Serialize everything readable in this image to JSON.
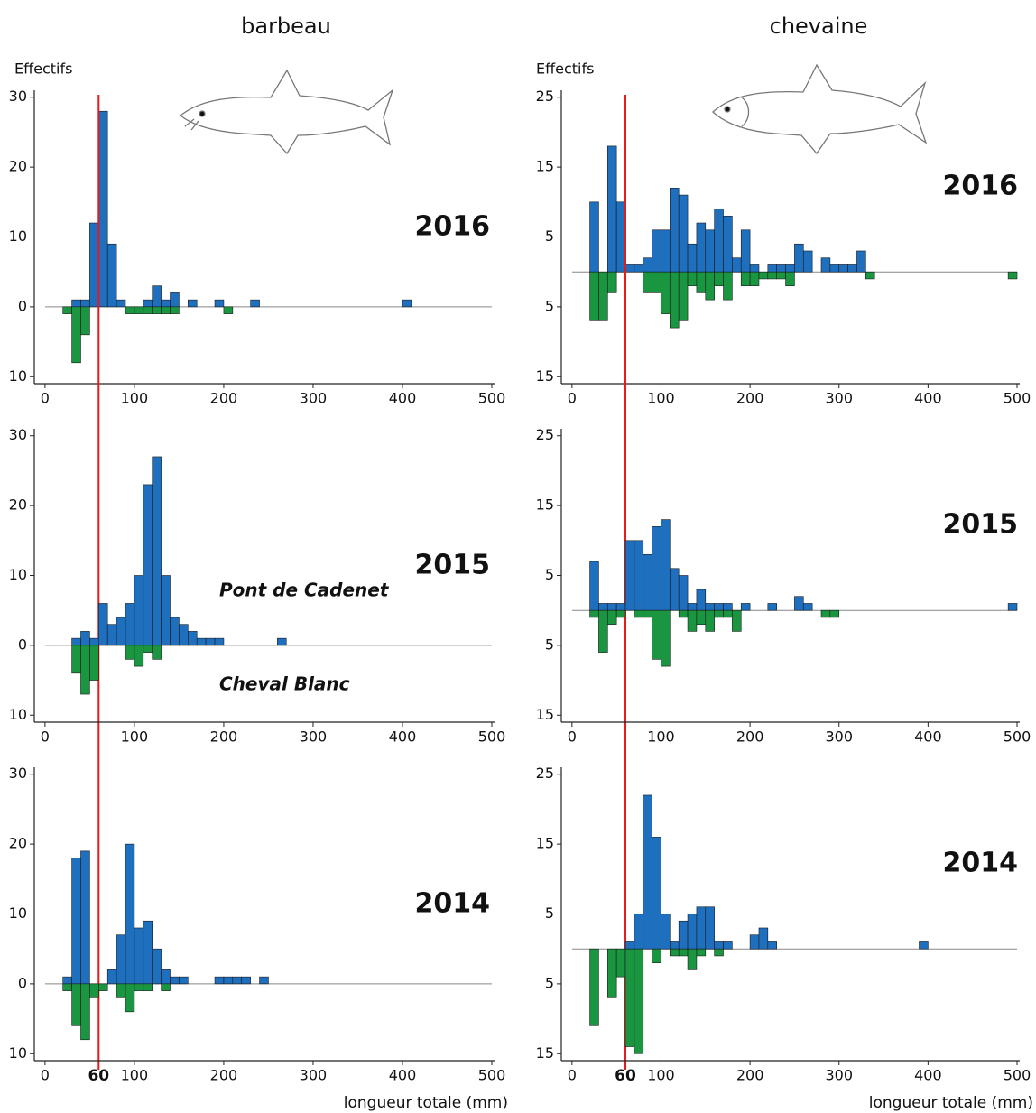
{
  "column_titles": [
    "barbeau",
    "chevaine"
  ],
  "y_label": "Effectifs",
  "x_label": "longueur totale (mm)",
  "reference": {
    "value": 60,
    "label": "60",
    "color": "#e41a1c"
  },
  "legend": [
    {
      "name": "Pont de Cadenet",
      "color": "#1f6fbf"
    },
    {
      "name": "Cheval Blanc",
      "color": "#1a9641"
    }
  ],
  "chart_data": [
    {
      "type": "histogram",
      "title": "2016",
      "bins": [
        20,
        30,
        40,
        50,
        60,
        70,
        80,
        90,
        100,
        110,
        120,
        130,
        140,
        150,
        160,
        170,
        180,
        190,
        200,
        210,
        220,
        230,
        240,
        250,
        260,
        270,
        280,
        290,
        300,
        310,
        320,
        330,
        340,
        350,
        360,
        370,
        380,
        390,
        400,
        410
      ],
      "series": [
        {
          "values": [
            0,
            1,
            1,
            12,
            28,
            9,
            1,
            0,
            0,
            1,
            3,
            1,
            2,
            0,
            1,
            0,
            0,
            1,
            0,
            0,
            0,
            1,
            0,
            0,
            0,
            0,
            0,
            0,
            0,
            0,
            0,
            0,
            0,
            0,
            0,
            0,
            0,
            0,
            1
          ]
        },
        {
          "values": [
            -1,
            -8,
            -4,
            0,
            0,
            0,
            0,
            -1,
            -1,
            -1,
            -1,
            -1,
            -1,
            0,
            0,
            0,
            0,
            0,
            -1,
            0,
            0,
            0,
            0,
            0,
            0,
            0,
            0,
            0,
            0,
            0,
            0,
            0,
            0,
            0,
            0,
            0,
            0,
            0,
            0
          ]
        }
      ],
      "xlim": [
        -12,
        500
      ],
      "xticks": [
        0,
        100,
        200,
        300,
        400,
        500
      ],
      "ylim": [
        -11,
        31
      ],
      "yticks": [
        30,
        20,
        10,
        0,
        {
          "value": -10,
          "label": "10"
        }
      ]
    },
    {
      "type": "histogram",
      "title": "2016",
      "bins": [
        20,
        30,
        40,
        50,
        60,
        70,
        80,
        90,
        100,
        110,
        120,
        130,
        140,
        150,
        160,
        170,
        180,
        190,
        200,
        210,
        220,
        230,
        240,
        250,
        260,
        270,
        280,
        290,
        300,
        310,
        320,
        330,
        340,
        350,
        360,
        370,
        380,
        390,
        400,
        410,
        420,
        430,
        440,
        450,
        460,
        470,
        480,
        490,
        500
      ],
      "series": [
        {
          "values": [
            10,
            0,
            18,
            10,
            1,
            1,
            2,
            6,
            6,
            12,
            11,
            4,
            7,
            6,
            9,
            8,
            2,
            6,
            1,
            0,
            1,
            1,
            1,
            4,
            3,
            0,
            2,
            1,
            1,
            1,
            3,
            0,
            0,
            0,
            0,
            0,
            0,
            0,
            0,
            0,
            0,
            0,
            0,
            0,
            0,
            0,
            0,
            0
          ]
        },
        {
          "values": [
            -7,
            -7,
            -3,
            0,
            0,
            0,
            -3,
            -3,
            -6,
            -8,
            -7,
            -2,
            -3,
            -4,
            -2,
            -4,
            0,
            -2,
            -2,
            -1,
            -1,
            -1,
            -2,
            0,
            0,
            0,
            0,
            0,
            0,
            0,
            0,
            -1,
            0,
            0,
            0,
            0,
            0,
            0,
            0,
            0,
            0,
            0,
            0,
            0,
            0,
            0,
            0,
            -1
          ]
        }
      ],
      "xlim": [
        -12,
        500
      ],
      "xticks": [
        0,
        100,
        200,
        300,
        400,
        500
      ],
      "ylim": [
        -16,
        26
      ],
      "yticks": [
        25,
        15,
        5,
        {
          "value": -5,
          "label": "5"
        },
        {
          "value": -15,
          "label": "15"
        }
      ]
    },
    {
      "type": "histogram",
      "title": "2015",
      "bins": [
        30,
        40,
        50,
        60,
        70,
        80,
        90,
        100,
        110,
        120,
        130,
        140,
        150,
        160,
        170,
        180,
        190,
        200,
        210,
        220,
        230,
        240,
        250,
        260,
        270
      ],
      "series": [
        {
          "values": [
            1,
            2,
            1,
            6,
            3,
            4,
            6,
            10,
            23,
            27,
            10,
            4,
            3,
            2,
            1,
            1,
            1,
            0,
            0,
            0,
            0,
            0,
            0,
            1
          ]
        },
        {
          "values": [
            -4,
            -7,
            -5,
            0,
            0,
            0,
            -2,
            -3,
            -1,
            -2,
            0,
            0,
            0,
            0,
            0,
            0,
            0,
            0,
            0,
            0,
            0,
            0,
            0,
            0
          ]
        }
      ],
      "xlim": [
        -12,
        500
      ],
      "xticks": [
        0,
        100,
        200,
        300,
        400,
        500
      ],
      "ylim": [
        -11,
        31
      ],
      "yticks": [
        30,
        20,
        10,
        0,
        {
          "value": -10,
          "label": "10"
        }
      ]
    },
    {
      "type": "histogram",
      "title": "2015",
      "bins": [
        20,
        30,
        40,
        50,
        60,
        70,
        80,
        90,
        100,
        110,
        120,
        130,
        140,
        150,
        160,
        170,
        180,
        190,
        200,
        210,
        220,
        230,
        240,
        250,
        260,
        270,
        280,
        290,
        300,
        310,
        320,
        330,
        340,
        350,
        360,
        370,
        380,
        390,
        400,
        410,
        420,
        430,
        440,
        450,
        460,
        470,
        480,
        490,
        500
      ],
      "series": [
        {
          "values": [
            7,
            1,
            1,
            1,
            10,
            10,
            8,
            12,
            13,
            6,
            5,
            1,
            3,
            1,
            1,
            1,
            0,
            1,
            0,
            0,
            1,
            0,
            0,
            2,
            1,
            0,
            0,
            0,
            0,
            0,
            0,
            0,
            0,
            0,
            0,
            0,
            0,
            0,
            0,
            0,
            0,
            0,
            0,
            0,
            0,
            0,
            0,
            1
          ]
        },
        {
          "values": [
            -1,
            -6,
            -2,
            -1,
            0,
            -1,
            -1,
            -7,
            -8,
            0,
            -1,
            -3,
            -2,
            -3,
            -1,
            -1,
            -3,
            0,
            0,
            0,
            0,
            0,
            0,
            0,
            0,
            0,
            -1,
            -1,
            0,
            0,
            0,
            0,
            0,
            0,
            0,
            0,
            0,
            0,
            0,
            0,
            0,
            0,
            0,
            0,
            0,
            0,
            0,
            0
          ]
        }
      ],
      "xlim": [
        -12,
        500
      ],
      "xticks": [
        0,
        100,
        200,
        300,
        400,
        500
      ],
      "ylim": [
        -16,
        26
      ],
      "yticks": [
        25,
        15,
        5,
        {
          "value": -5,
          "label": "5"
        },
        {
          "value": -15,
          "label": "15"
        }
      ]
    },
    {
      "type": "histogram",
      "title": "2014",
      "bins": [
        20,
        30,
        40,
        50,
        60,
        70,
        80,
        90,
        100,
        110,
        120,
        130,
        140,
        150,
        160,
        170,
        180,
        190,
        200,
        210,
        220,
        230,
        240,
        250
      ],
      "series": [
        {
          "values": [
            1,
            18,
            19,
            0,
            0,
            2,
            7,
            20,
            8,
            9,
            5,
            2,
            1,
            1,
            0,
            0,
            0,
            1,
            1,
            1,
            1,
            0,
            1
          ]
        },
        {
          "values": [
            -1,
            -6,
            -8,
            -2,
            -1,
            0,
            -2,
            -4,
            -1,
            -1,
            0,
            -1,
            0,
            0,
            0,
            0,
            0,
            0,
            0,
            0,
            0,
            0,
            0
          ]
        }
      ],
      "xlim": [
        -12,
        500
      ],
      "xticks": [
        0,
        100,
        200,
        300,
        400,
        500
      ],
      "ylim": [
        -11,
        31
      ],
      "yticks": [
        30,
        20,
        10,
        0,
        {
          "value": -10,
          "label": "10"
        }
      ]
    },
    {
      "type": "histogram",
      "title": "2014",
      "bins": [
        20,
        30,
        40,
        50,
        60,
        70,
        80,
        90,
        100,
        110,
        120,
        130,
        140,
        150,
        160,
        170,
        180,
        190,
        200,
        210,
        220,
        230,
        240,
        250,
        260,
        270,
        280,
        290,
        300,
        310,
        320,
        330,
        340,
        350,
        360,
        370,
        380,
        390,
        400
      ],
      "series": [
        {
          "values": [
            0,
            0,
            0,
            0,
            1,
            5,
            22,
            16,
            5,
            1,
            4,
            5,
            6,
            6,
            1,
            1,
            0,
            0,
            2,
            3,
            1,
            0,
            0,
            0,
            0,
            0,
            0,
            0,
            0,
            0,
            0,
            0,
            0,
            0,
            0,
            0,
            0,
            1
          ]
        },
        {
          "values": [
            -11,
            0,
            -7,
            -4,
            -14,
            -15,
            0,
            -2,
            0,
            -1,
            -1,
            -3,
            -1,
            0,
            -1,
            0,
            0,
            0,
            0,
            0,
            0,
            0,
            0,
            0,
            0,
            0,
            0,
            0,
            0,
            0,
            0,
            0,
            0,
            0,
            0,
            0,
            0,
            0
          ]
        }
      ],
      "xlim": [
        -12,
        500
      ],
      "xticks": [
        0,
        100,
        200,
        300,
        400,
        500
      ],
      "ylim": [
        -16,
        26
      ],
      "yticks": [
        25,
        15,
        5,
        {
          "value": -5,
          "label": "5"
        },
        {
          "value": -15,
          "label": "15"
        }
      ]
    }
  ]
}
